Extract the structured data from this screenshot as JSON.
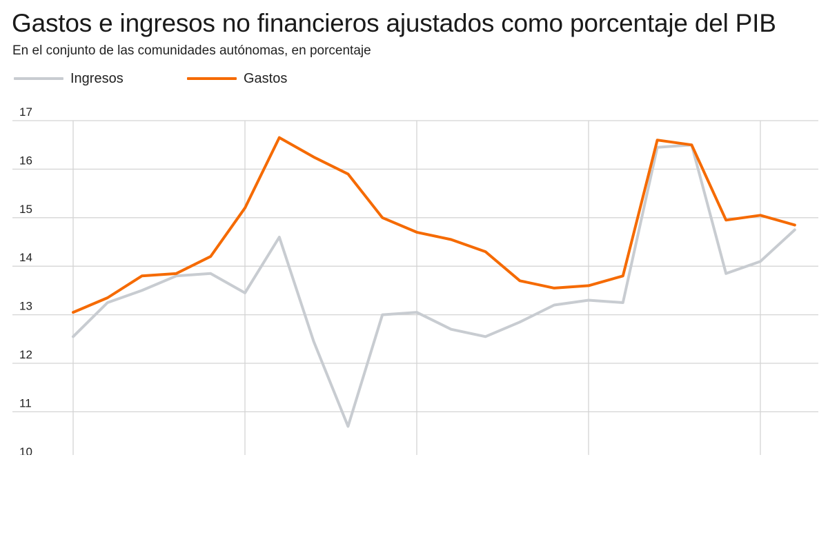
{
  "header": {
    "title": "Gastos e ingresos no financieros ajustados como porcentaje del PIB",
    "subtitle": "En el conjunto de las comunidades autónomas, en porcentaje"
  },
  "colors": {
    "ingresos": "#c8ccd1",
    "gastos": "#f56a00",
    "grid": "#d4d4d4"
  },
  "chart_data": {
    "type": "line",
    "title": "Gastos e ingresos no financieros ajustados como porcentaje del PIB",
    "subtitle": "En el conjunto de las comunidades autónomas, en porcentaje",
    "xlabel": "",
    "ylabel": "",
    "ylim": [
      10,
      17
    ],
    "yticks": [
      "10",
      "11",
      "12",
      "13",
      "14",
      "15",
      "16",
      "17"
    ],
    "grid": true,
    "legend_position": "top-left",
    "x": [
      0,
      1,
      2,
      3,
      4,
      5,
      6,
      7,
      8,
      9,
      10,
      11,
      12,
      13,
      14,
      15,
      16,
      17,
      18,
      19,
      20,
      21
    ],
    "series": [
      {
        "name": "Ingresos",
        "values": [
          12.55,
          13.25,
          13.5,
          13.8,
          13.85,
          13.45,
          14.6,
          12.45,
          10.7,
          13.0,
          13.05,
          12.7,
          12.55,
          12.85,
          13.2,
          13.3,
          13.25,
          16.45,
          16.5,
          13.85,
          14.1,
          14.75
        ]
      },
      {
        "name": "Gastos",
        "values": [
          13.05,
          13.35,
          13.8,
          13.85,
          14.2,
          15.2,
          16.65,
          16.25,
          15.9,
          15.0,
          14.7,
          14.55,
          14.3,
          13.7,
          13.55,
          13.6,
          13.8,
          16.6,
          16.5,
          14.95,
          15.05,
          14.85
        ]
      }
    ]
  }
}
